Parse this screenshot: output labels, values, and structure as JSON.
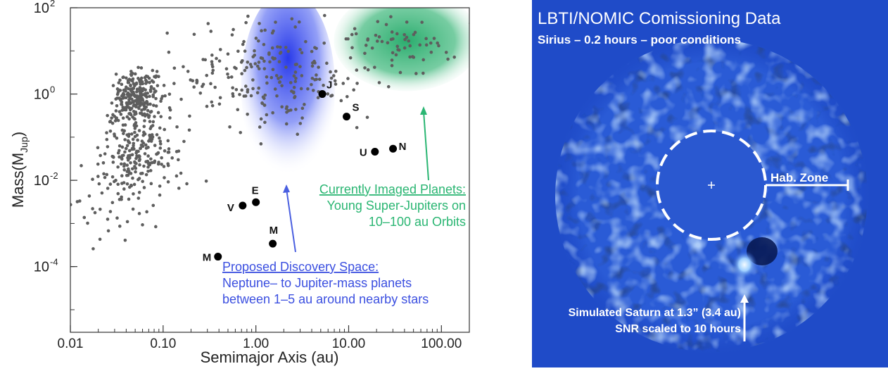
{
  "chart_data": {
    "type": "scatter",
    "xlabel": "Semimajor Axis (au)",
    "ylabel": {
      "main": "Mass(M",
      "sub": "Jup",
      "close": ")"
    },
    "x_scale": "log",
    "y_scale": "log",
    "xlim": [
      0.01,
      200
    ],
    "ylim": [
      3e-06,
      100
    ],
    "x_ticks": [
      {
        "value": 0.01,
        "label": "0.01"
      },
      {
        "value": 0.1,
        "label": "0.10"
      },
      {
        "value": 1,
        "label": "1.00"
      },
      {
        "value": 10,
        "label": "10.00"
      },
      {
        "value": 100,
        "label": "100.00"
      }
    ],
    "y_ticks": [
      {
        "value": 100,
        "base": "10",
        "exp": "2"
      },
      {
        "value": 1,
        "base": "10",
        "exp": "0"
      },
      {
        "value": 0.01,
        "base": "10",
        "exp": "-2"
      },
      {
        "value": 0.0001,
        "base": "10",
        "exp": "-4"
      }
    ],
    "grid": false,
    "solar_system": [
      {
        "label": "M",
        "x": 0.39,
        "y": 0.00017
      },
      {
        "label": "V",
        "x": 0.72,
        "y": 0.0026
      },
      {
        "label": "E",
        "x": 1.0,
        "y": 0.0031
      },
      {
        "label": "M",
        "x": 1.52,
        "y": 0.00034
      },
      {
        "label": "J",
        "x": 5.2,
        "y": 1.0
      },
      {
        "label": "S",
        "x": 9.5,
        "y": 0.3
      },
      {
        "label": "U",
        "x": 19.2,
        "y": 0.046
      },
      {
        "label": "N",
        "x": 30.1,
        "y": 0.054
      }
    ],
    "exoplanet_population": {
      "seed": 7,
      "clusters": [
        {
          "n": 260,
          "x_center": 0.05,
          "x_sigma_dex": 0.12,
          "y_center": 0.8,
          "y_sigma_dex": 0.3
        },
        {
          "n": 210,
          "x_center": 0.06,
          "x_sigma_dex": 0.22,
          "y_center": 0.04,
          "y_sigma_dex": 0.45
        },
        {
          "n": 230,
          "x_center": 1.2,
          "x_sigma_dex": 0.55,
          "y_center": 2.5,
          "y_sigma_dex": 0.6
        },
        {
          "n": 60,
          "x_center": 40,
          "x_sigma_dex": 0.35,
          "y_center": 15,
          "y_sigma_dex": 0.35
        },
        {
          "n": 40,
          "x_center": 0.03,
          "x_sigma_dex": 0.25,
          "y_center": 0.003,
          "y_sigma_dex": 0.5
        }
      ]
    },
    "regions": [
      {
        "name": "proposed",
        "color": "#2233ee",
        "x_range": [
          0.9,
          5.5
        ],
        "y_range": [
          0.02,
          100
        ]
      },
      {
        "name": "imaged",
        "color": "#1fa866",
        "x_range": [
          9,
          200
        ],
        "y_range": [
          3,
          100
        ]
      }
    ],
    "annotations": {
      "proposed": {
        "title": "Proposed Discovery Space:",
        "line1": "Neptune– to Jupiter-mass planets",
        "line2": "between 1–5 au  around nearby stars",
        "color": "#3b4fe0"
      },
      "imaged": {
        "title": "Currently Imaged Planets:",
        "line1": "Young Super-Jupiters on",
        "line2": "10–100 au Orbits",
        "color": "#2bb673"
      }
    }
  },
  "image_panel": {
    "title": "LBTI/NOMIC Comissioning Data",
    "subtitle": "Sirius – 0.2 hours – poor conditions",
    "zone_label": "Hab. Zone",
    "caption1": "Simulated Saturn at 1.3” (3.4 au)",
    "caption2": "SNR scaled to 10 hours",
    "background": "#1f4bc8"
  }
}
